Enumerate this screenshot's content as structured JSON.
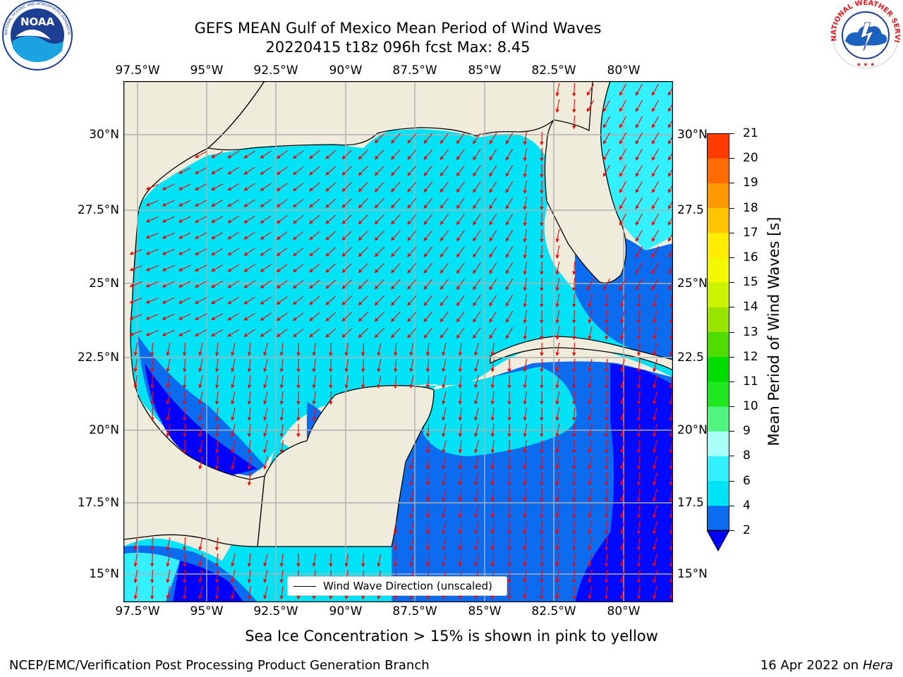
{
  "title": {
    "line1": "GEFS MEAN Gulf of Mexico Mean Period of Wind Waves",
    "line2": "20220415 t18z 096h fcst   Max: 8.45"
  },
  "logos": {
    "noaa_text": "NOAA",
    "noaa_ring": "NATIONAL OCEANIC AND ATMOSPHERIC ADMINISTRATION · U.S. DEPARTMENT OF COMMERCE",
    "nws_ring": "NATIONAL WEATHER SERVICE"
  },
  "map": {
    "lon_labels": [
      "97.5°W",
      "95°W",
      "92.5°W",
      "90°W",
      "87.5°W",
      "85°W",
      "82.5°W",
      "80°W"
    ],
    "lat_labels_left": [
      "30°N",
      "27.5°N",
      "25°N",
      "22.5°N",
      "20°N",
      "17.5°N",
      "15°N"
    ],
    "lat_labels_right": [
      "30°N",
      "27.5",
      "25°N",
      "22.5",
      "20°N",
      "17.5",
      "15°N"
    ],
    "legend_label": "Wind Wave Direction (unscaled)",
    "land_color": "#efecdc",
    "arrow_color": "#ff0000",
    "grid_color": "#b0b0b0"
  },
  "colorbar": {
    "label": "Mean Period of Wind Waves [s]",
    "ticks": [
      "2",
      "4",
      "6",
      "8",
      "9",
      "10",
      "11",
      "12",
      "13",
      "14",
      "15",
      "16",
      "17",
      "18",
      "19",
      "20",
      "21"
    ],
    "colors": [
      "#0b6cf0",
      "#00e2f6",
      "#33f0ff",
      "#a8fff8",
      "#4ff57f",
      "#1fe81f",
      "#00dd00",
      "#4fdd00",
      "#99e500",
      "#cbf200",
      "#f2f900",
      "#ffec00",
      "#ffc400",
      "#ff9900",
      "#ff6b00",
      "#ff3b00",
      "#ff0000"
    ],
    "under_color": "#0000ff"
  },
  "notes": {
    "sea_ice": "Sea Ice Concentration > 15% is shown in pink to yellow"
  },
  "footer": {
    "left": "NCEP/EMC/Verification Post Processing Product Generation Branch",
    "date": "16 Apr 2022 on ",
    "machine": "Hera"
  }
}
